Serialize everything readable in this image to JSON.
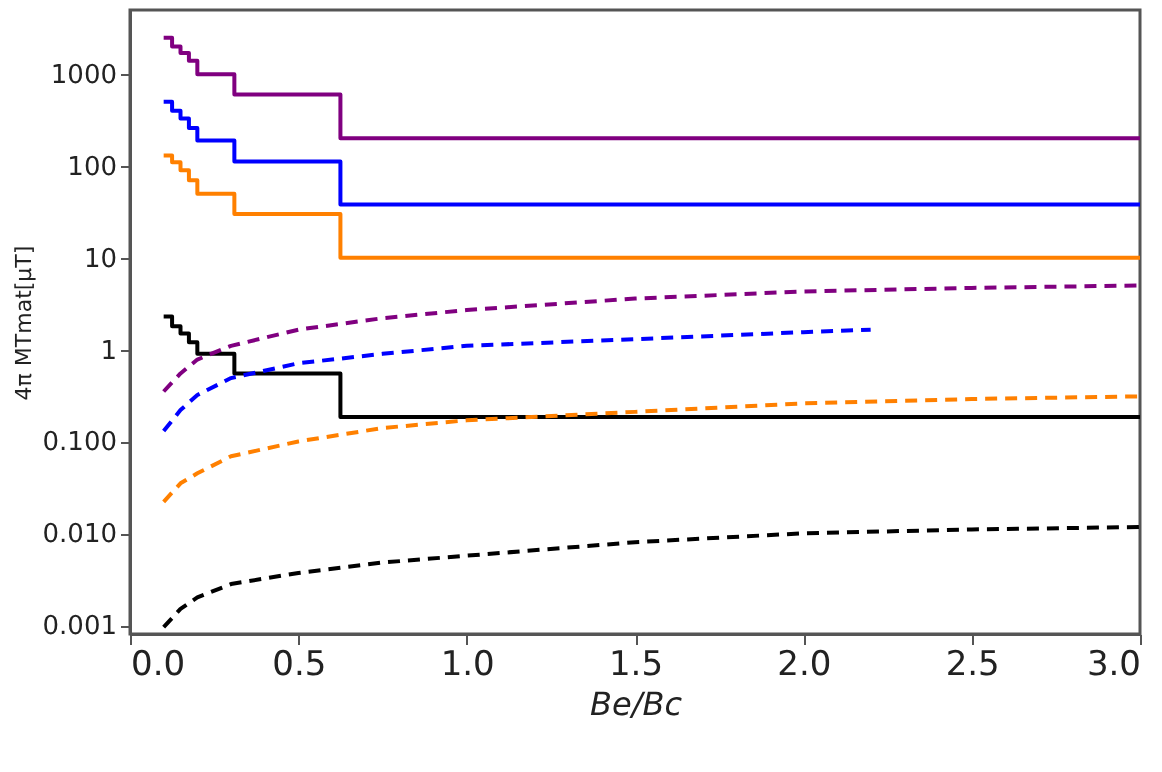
{
  "chart_data": {
    "type": "line",
    "xlabel": "Be/Bc",
    "ylabel": "4π MTmat[μT]",
    "log": "y",
    "grid": false,
    "xlim": [
      0.0,
      3.0
    ],
    "xticks": [
      {
        "value": 0,
        "label": "0.0"
      },
      0.5,
      {
        "value": 1,
        "label": "1.0"
      },
      1.5,
      {
        "value": 2,
        "label": "2.0"
      },
      2.5,
      {
        "value": 3,
        "label": "3.0"
      }
    ],
    "ylim": [
      0.0008,
      5000
    ],
    "yticks": [
      0.001,
      {
        "value": 0.01,
        "label": "0.010"
      },
      {
        "value": 0.1,
        "label": "0.100"
      },
      1,
      10,
      100,
      1000
    ],
    "series": [
      {
        "type": "step",
        "color": "#800080",
        "line_style": "solid",
        "x": [
          0.1,
          0.125,
          0.15,
          0.175,
          0.2,
          0.31,
          0.625,
          3.0
        ],
        "values": [
          2500,
          2000,
          1700,
          1400,
          1000,
          600,
          200,
          200
        ]
      },
      {
        "type": "step",
        "color": "#0000ff",
        "line_style": "solid",
        "x": [
          0.1,
          0.125,
          0.15,
          0.175,
          0.2,
          0.31,
          0.625,
          3.0
        ],
        "values": [
          500,
          400,
          330,
          260,
          190,
          112,
          38,
          38
        ]
      },
      {
        "type": "step",
        "color": "#ff8000",
        "line_style": "solid",
        "x": [
          0.1,
          0.125,
          0.15,
          0.175,
          0.2,
          0.31,
          0.625,
          3.0
        ],
        "values": [
          130,
          110,
          90,
          70,
          50,
          30,
          10,
          10
        ]
      },
      {
        "type": "step",
        "color": "#000000",
        "line_style": "solid",
        "x": [
          0.1,
          0.125,
          0.15,
          0.175,
          0.2,
          0.31,
          0.625,
          3.0
        ],
        "values": [
          2.3,
          1.8,
          1.5,
          1.2,
          0.9,
          0.55,
          0.185,
          0.185
        ]
      },
      {
        "type": "line",
        "color": "#800080",
        "line_style": "dashed",
        "x": [
          0.1,
          0.15,
          0.2,
          0.3,
          0.5,
          0.75,
          1.0,
          1.5,
          2.0,
          2.5,
          3.0
        ],
        "values": [
          0.35,
          0.55,
          0.78,
          1.1,
          1.65,
          2.2,
          2.7,
          3.6,
          4.3,
          4.7,
          5.0
        ]
      },
      {
        "type": "line",
        "color": "#0000ff",
        "line_style": "dashed",
        "x": [
          0.1,
          0.15,
          0.2,
          0.3,
          0.5,
          0.75,
          1.0,
          1.5,
          2.0,
          2.2
        ],
        "values": [
          0.13,
          0.22,
          0.32,
          0.49,
          0.71,
          0.9,
          1.1,
          1.3,
          1.55,
          1.65
        ]
      },
      {
        "type": "line",
        "color": "#ff8000",
        "line_style": "dashed",
        "x": [
          0.1,
          0.15,
          0.2,
          0.3,
          0.5,
          0.75,
          1.0,
          1.5,
          2.0,
          2.5,
          3.0
        ],
        "values": [
          0.022,
          0.035,
          0.045,
          0.069,
          0.1,
          0.14,
          0.17,
          0.21,
          0.26,
          0.29,
          0.31
        ]
      },
      {
        "type": "line",
        "color": "#000000",
        "line_style": "dashed",
        "x": [
          0.1,
          0.15,
          0.2,
          0.3,
          0.5,
          0.75,
          1.0,
          1.5,
          2.0,
          2.5,
          3.0
        ],
        "values": [
          0.00095,
          0.0015,
          0.002,
          0.0028,
          0.0037,
          0.0048,
          0.0057,
          0.008,
          0.01,
          0.011,
          0.0117
        ]
      }
    ]
  }
}
